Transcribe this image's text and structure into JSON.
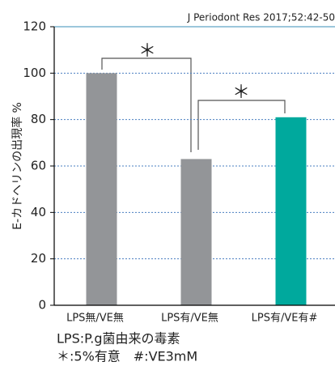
{
  "chart_data": {
    "type": "bar",
    "source": "J Periodont Res 2017;52:42-50",
    "ylabel": "E-カドヘリンの出現率 %",
    "categories": [
      "LPS無/VE無",
      "LPS有/VE無",
      "LPS有/VE有#"
    ],
    "values": [
      100,
      63,
      81
    ],
    "colors": [
      "#939598",
      "#939598",
      "#00a99d"
    ],
    "ylim": [
      0,
      120
    ],
    "yticks": [
      0,
      20,
      40,
      60,
      80,
      100,
      120
    ],
    "grid": true,
    "annotations": [
      "＊",
      "＊"
    ],
    "notes": [
      "LPS:P.g菌由来の毒素",
      "＊:5%有意　#:VE3mM"
    ]
  }
}
